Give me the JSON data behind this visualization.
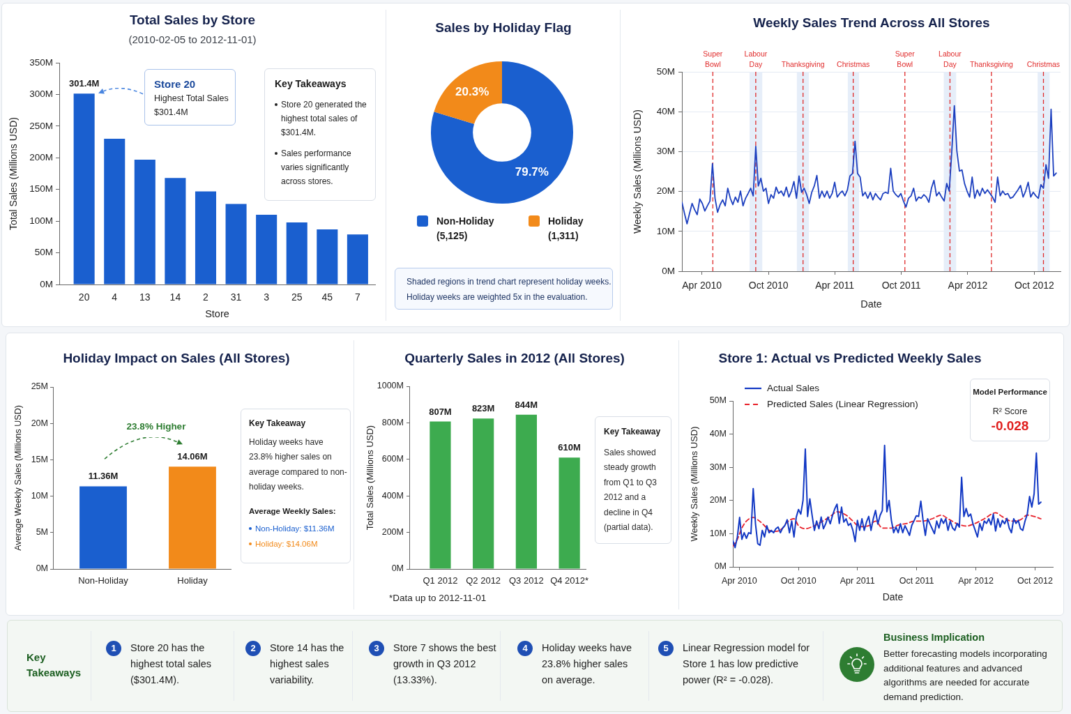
{
  "chart_data": [
    {
      "type": "bar",
      "title": "Total Sales by Store",
      "subtitle": "(2010-02-05 to 2012-11-01)",
      "xlabel": "Store",
      "ylabel": "Total Sales (Millions USD)",
      "categories": [
        "20",
        "4",
        "13",
        "14",
        "2",
        "31",
        "3",
        "25",
        "45",
        "7"
      ],
      "values": [
        301.4,
        230,
        197,
        168,
        147,
        127,
        110,
        98,
        87,
        79
      ],
      "color": "#1a5fcf",
      "value_labels": [
        "301.4M",
        null,
        null,
        null,
        null,
        null,
        null,
        null,
        null,
        null
      ],
      "ylim": [
        0,
        350
      ],
      "yticks": [
        {
          "value": 0,
          "label": "0M"
        },
        {
          "value": 50,
          "label": "50M"
        },
        {
          "value": 100,
          "label": "100M"
        },
        {
          "value": 150,
          "label": "150M"
        },
        {
          "value": 200,
          "label": "200M"
        },
        {
          "value": 250,
          "label": "250M"
        },
        {
          "value": 300,
          "label": "300M"
        },
        {
          "value": 350,
          "label": "350M"
        }
      ],
      "annotations": [
        "Store 20\nHighest Total Sales\n$301.4M",
        "Key Takeaways",
        "Store 20 generated the highest total sales of $301.4M.",
        "Sales performance varies significantly across stores."
      ]
    },
    {
      "type": "donut",
      "title": "Sales by Holiday Flag",
      "categories": [
        "Non-Holiday\n(5,125)",
        "Holiday\n(1,311)"
      ],
      "values": [
        79.7,
        20.3
      ],
      "colors": [
        "#1a5fcf",
        "#f28a1a"
      ],
      "value_labels": [
        "79.7%",
        "20.3%"
      ],
      "legend": "bottom",
      "annotations": [
        "Shaded regions in trend chart represent holiday weeks.",
        "Holiday weeks are weighted 5x in the evaluation."
      ]
    },
    {
      "type": "line",
      "title": "Weekly Sales Trend Across All Stores",
      "xlabel": "Date",
      "ylabel": "Weekly Sales (Millions USD)",
      "x": [
        "2010-02-05",
        "2010-02-12",
        "2010-02-19",
        "2010-02-26",
        "2010-03-05",
        "2010-03-12",
        "2010-03-19",
        "2010-03-26",
        "2010-04-02",
        "2010-04-09",
        "2010-04-16",
        "2010-04-23",
        "2010-04-30",
        "2010-05-07",
        "2010-05-14",
        "2010-05-21",
        "2010-05-28",
        "2010-06-04",
        "2010-06-11",
        "2010-06-18",
        "2010-06-25",
        "2010-07-02",
        "2010-07-09",
        "2010-07-16",
        "2010-07-23",
        "2010-07-30",
        "2010-08-06",
        "2010-08-13",
        "2010-08-20",
        "2010-08-27",
        "2010-09-03",
        "2010-09-10",
        "2010-09-17",
        "2010-09-24",
        "2010-10-01",
        "2010-10-08",
        "2010-10-15",
        "2010-10-22",
        "2010-10-29",
        "2010-11-05",
        "2010-11-12",
        "2010-11-19",
        "2010-11-26",
        "2010-12-03",
        "2010-12-10",
        "2010-12-17",
        "2010-12-24",
        "2010-12-31",
        "2011-01-07",
        "2011-01-14",
        "2011-01-21",
        "2011-01-28",
        "2011-02-04",
        "2011-02-11",
        "2011-02-18",
        "2011-02-25",
        "2011-03-04",
        "2011-03-11",
        "2011-03-18",
        "2011-03-25",
        "2011-04-01",
        "2011-04-08",
        "2011-04-15",
        "2011-04-22",
        "2011-04-29",
        "2011-05-06",
        "2011-05-13",
        "2011-05-20",
        "2011-05-27",
        "2011-06-03",
        "2011-06-10",
        "2011-06-17",
        "2011-06-24",
        "2011-07-01",
        "2011-07-08",
        "2011-07-15",
        "2011-07-22",
        "2011-07-29",
        "2011-08-05",
        "2011-08-12",
        "2011-08-19",
        "2011-08-26",
        "2011-09-02",
        "2011-09-09",
        "2011-09-16",
        "2011-09-23",
        "2011-09-30",
        "2011-10-07",
        "2011-10-14",
        "2011-10-21",
        "2011-10-28",
        "2011-11-04",
        "2011-11-11",
        "2011-11-18",
        "2011-11-25",
        "2011-12-02",
        "2011-12-09",
        "2011-12-16",
        "2011-12-23",
        "2011-12-30",
        "2012-01-06",
        "2012-01-13",
        "2012-01-20",
        "2012-01-27",
        "2012-02-03",
        "2012-02-10",
        "2012-02-17",
        "2012-02-24",
        "2012-03-02",
        "2012-03-09",
        "2012-03-16",
        "2012-03-23",
        "2012-03-30",
        "2012-04-06",
        "2012-04-13",
        "2012-04-20",
        "2012-04-27",
        "2012-05-04",
        "2012-05-11",
        "2012-05-18",
        "2012-05-25",
        "2012-06-01",
        "2012-06-08",
        "2012-06-15",
        "2012-06-22",
        "2012-06-29",
        "2012-07-06",
        "2012-07-13",
        "2012-07-20",
        "2012-07-27",
        "2012-08-03",
        "2012-08-10",
        "2012-08-17",
        "2012-08-24",
        "2012-08-31",
        "2012-09-07",
        "2012-09-14",
        "2012-09-21",
        "2012-09-28",
        "2012-10-05",
        "2012-10-12",
        "2012-10-19",
        "2012-10-26",
        "2012-11-02",
        "2012-11-09",
        "2012-11-16",
        "2012-11-23",
        "2012-11-30"
      ],
      "values": [
        17.3,
        14.5,
        11.9,
        14.5,
        17.0,
        15.4,
        14.2,
        18.1,
        17.0,
        15.1,
        16.4,
        17.6,
        27.0,
        18.3,
        14.8,
        16.7,
        17.9,
        16.4,
        20.8,
        18.3,
        16.7,
        18.6,
        17.3,
        20.1,
        16.4,
        18.3,
        19.5,
        20.8,
        18.9,
        31.3,
        21.4,
        23.3,
        20.1,
        20.8,
        17.0,
        19.2,
        18.3,
        21.1,
        19.5,
        20.1,
        18.9,
        21.1,
        18.6,
        20.1,
        22.5,
        18.3,
        23.9,
        19.8,
        20.8,
        19.2,
        17.0,
        19.8,
        21.4,
        24.0,
        18.3,
        20.1,
        18.6,
        20.1,
        18.3,
        19.5,
        22.3,
        18.6,
        19.5,
        20.1,
        18.9,
        20.4,
        23.9,
        24.5,
        32.6,
        24.5,
        23.6,
        18.9,
        19.8,
        18.3,
        19.8,
        17.9,
        19.5,
        18.6,
        17.9,
        19.5,
        19.8,
        19.5,
        25.8,
        20.1,
        19.2,
        18.6,
        19.5,
        17.6,
        16.1,
        18.3,
        18.9,
        20.8,
        17.6,
        18.6,
        18.3,
        19.2,
        18.6,
        17.3,
        20.8,
        22.8,
        18.9,
        19.8,
        18.6,
        17.6,
        22.0,
        20.1,
        30.1,
        41.5,
        30.1,
        25.1,
        25.4,
        22.0,
        20.1,
        18.6,
        23.6,
        18.3,
        20.4,
        18.9,
        20.8,
        19.5,
        20.4,
        19.5,
        18.6,
        17.3,
        23.6,
        18.9,
        20.1,
        19.2,
        19.5,
        18.3,
        18.6,
        19.5,
        20.4,
        21.5,
        18.6,
        20.1,
        22.3,
        18.6,
        19.8,
        18.9,
        18.3,
        21.7,
        20.8,
        26.7,
        23.3,
        40.6,
        23.9,
        24.6
      ],
      "color": "#1c3fbf",
      "xlim": [
        "2010-02-05",
        "2012-12-12"
      ],
      "xticks": [
        {
          "value": "2010-04-01",
          "label": "Apr 2010"
        },
        {
          "value": "2010-10-01",
          "label": "Oct 2010"
        },
        {
          "value": "2011-04-01",
          "label": "Apr 2011"
        },
        {
          "value": "2011-10-01",
          "label": "Oct 2011"
        },
        {
          "value": "2012-04-01",
          "label": "Apr 2012"
        },
        {
          "value": "2012-10-01",
          "label": "Oct 2012"
        }
      ],
      "ylim": [
        0,
        50
      ],
      "yticks": [
        {
          "value": 0,
          "label": "0M"
        },
        {
          "value": 10,
          "label": "10M"
        },
        {
          "value": 20,
          "label": "20M"
        },
        {
          "value": 30,
          "label": "30M"
        },
        {
          "value": 40,
          "label": "40M"
        },
        {
          "value": 50,
          "label": "50M"
        }
      ],
      "grid": "y",
      "ref_lines": [
        {
          "axis": "x",
          "value": "2010-05-01",
          "label": "Super Bowl",
          "color": "#e02b2b",
          "line_style": "dashed"
        },
        {
          "axis": "x",
          "value": "2010-08-27",
          "label": "Labour Day",
          "color": "#e02b2b",
          "line_style": "dashed"
        },
        {
          "axis": "x",
          "value": "2011-01-04",
          "label": "Thanksgiving",
          "color": "#e02b2b",
          "line_style": "dashed"
        },
        {
          "axis": "x",
          "value": "2011-05-22",
          "label": "Christmas",
          "color": "#e02b2b",
          "line_style": "dashed"
        },
        {
          "axis": "x",
          "value": "2011-10-11",
          "label": "Super Bowl",
          "color": "#e02b2b",
          "line_style": "dashed"
        },
        {
          "axis": "x",
          "value": "2012-02-12",
          "label": "Labour Day",
          "color": "#e02b2b",
          "line_style": "dashed"
        },
        {
          "axis": "x",
          "value": "2012-06-05",
          "label": "Thanksgiving",
          "color": "#e02b2b",
          "line_style": "dashed"
        },
        {
          "axis": "x",
          "value": "2012-10-26",
          "label": "Christmas",
          "color": "#e02b2b",
          "line_style": "dashed"
        }
      ],
      "bands": [
        {
          "axis": "x",
          "from": "2010-08-10",
          "to": "2010-09-14",
          "color": "#e6eef9"
        },
        {
          "axis": "x",
          "from": "2010-12-18",
          "to": "2011-01-20",
          "color": "#e6eef9"
        },
        {
          "axis": "x",
          "from": "2011-05-07",
          "to": "2011-06-07",
          "color": "#e6eef9"
        },
        {
          "axis": "x",
          "from": "2012-01-26",
          "to": "2012-02-29",
          "color": "#e6eef9"
        },
        {
          "axis": "x",
          "from": "2012-10-10",
          "to": "2012-11-12",
          "color": "#e6eef9"
        }
      ]
    },
    {
      "type": "bar",
      "title": "Holiday Impact on Sales (All Stores)",
      "ylabel": "Average Weekly Sales (Millions USD)",
      "categories": [
        "Non-Holiday",
        "Holiday"
      ],
      "values": [
        11.36,
        14.06
      ],
      "colors": [
        "#1a5fcf",
        "#f28a1a"
      ],
      "value_labels": [
        "11.36M",
        "14.06M"
      ],
      "ylim": [
        0,
        25
      ],
      "yticks": [
        {
          "value": 0,
          "label": "0M"
        },
        {
          "value": 5,
          "label": "5M"
        },
        {
          "value": 10,
          "label": "10M"
        },
        {
          "value": 15,
          "label": "15M"
        },
        {
          "value": 20,
          "label": "20M"
        },
        {
          "value": 25,
          "label": "25M"
        }
      ],
      "annotations": [
        "23.8% Higher",
        "Key Takeaway",
        "Holiday weeks have 23.8% higher sales on average compared to non-holiday weeks.",
        "Average Weekly Sales:",
        "Non-Holiday: $11.36M",
        "Holiday: $14.06M"
      ]
    },
    {
      "type": "bar",
      "title": "Quarterly Sales in 2012 (All Stores)",
      "ylabel": "Total Sales (Millions USD)",
      "categories": [
        "Q1 2012",
        "Q2 2012",
        "Q3 2012",
        "Q4 2012*"
      ],
      "values": [
        807,
        823,
        844,
        610
      ],
      "color": "#3dab4f",
      "value_labels": [
        "807M",
        "823M",
        "844M",
        "610M"
      ],
      "ylim": [
        0,
        1000
      ],
      "yticks": [
        {
          "value": 0,
          "label": "0M"
        },
        {
          "value": 200,
          "label": "200M"
        },
        {
          "value": 400,
          "label": "400M"
        },
        {
          "value": 600,
          "label": "600M"
        },
        {
          "value": 800,
          "label": "800M"
        },
        {
          "value": 1000,
          "label": "1000M"
        }
      ],
      "annotations": [
        "*Data up to 2012-11-01",
        "Key Takeaway",
        "Sales showed steady growth from Q1 to Q3 2012 and a decline in Q4 (partial data)."
      ]
    },
    {
      "type": "line",
      "title": "Store 1: Actual vs Predicted Weekly Sales",
      "xlabel": "Date",
      "ylabel": "Weekly Sales (Millions USD)",
      "legend": "top left",
      "series": [
        {
          "name": "Actual Sales",
          "color": "#1238c4",
          "x": [
            "2010-03-12",
            "2010-03-19",
            "2010-03-26",
            "2010-04-02",
            "2010-04-09",
            "2010-04-16",
            "2010-04-23",
            "2010-04-30",
            "2010-05-07",
            "2010-05-14",
            "2010-05-21",
            "2010-05-28",
            "2010-06-04",
            "2010-06-11",
            "2010-06-18",
            "2010-06-25",
            "2010-07-02",
            "2010-07-09",
            "2010-07-16",
            "2010-07-23",
            "2010-07-30",
            "2010-08-06",
            "2010-08-13",
            "2010-08-20",
            "2010-08-27",
            "2010-09-03",
            "2010-09-10",
            "2010-09-17",
            "2010-09-24",
            "2010-10-01",
            "2010-10-08",
            "2010-10-15",
            "2010-10-22",
            "2010-10-29",
            "2010-11-05",
            "2010-11-12",
            "2010-11-19",
            "2010-11-26",
            "2010-12-03",
            "2010-12-10",
            "2010-12-17",
            "2010-12-24",
            "2010-12-31",
            "2011-01-07",
            "2011-01-14",
            "2011-01-21",
            "2011-01-28",
            "2011-02-04",
            "2011-02-11",
            "2011-02-18",
            "2011-02-25",
            "2011-03-04",
            "2011-03-11",
            "2011-03-18",
            "2011-03-25",
            "2011-04-01",
            "2011-04-08",
            "2011-04-15",
            "2011-04-22",
            "2011-04-29",
            "2011-05-06",
            "2011-05-13",
            "2011-05-20",
            "2011-05-27",
            "2011-06-03",
            "2011-06-10",
            "2011-06-17",
            "2011-06-24",
            "2011-07-01",
            "2011-07-08",
            "2011-07-15",
            "2011-07-22",
            "2011-07-29",
            "2011-08-05",
            "2011-08-12",
            "2011-08-19",
            "2011-08-26",
            "2011-09-02",
            "2011-09-09",
            "2011-09-16",
            "2011-09-23",
            "2011-09-30",
            "2011-10-07",
            "2011-10-14",
            "2011-10-21",
            "2011-10-28",
            "2011-11-04",
            "2011-11-11",
            "2011-11-18",
            "2011-11-25",
            "2011-12-02",
            "2011-12-09",
            "2011-12-16",
            "2011-12-23",
            "2011-12-30",
            "2012-01-06",
            "2012-01-13",
            "2012-01-20",
            "2012-01-27",
            "2012-02-03",
            "2012-02-10",
            "2012-02-17",
            "2012-02-24",
            "2012-03-02",
            "2012-03-09",
            "2012-03-16",
            "2012-03-23",
            "2012-03-30",
            "2012-04-06",
            "2012-04-13",
            "2012-04-20",
            "2012-04-27",
            "2012-05-04",
            "2012-05-11",
            "2012-05-18",
            "2012-05-25",
            "2012-06-01",
            "2012-06-08",
            "2012-06-15",
            "2012-06-22",
            "2012-06-29",
            "2012-07-06",
            "2012-07-13",
            "2012-07-20",
            "2012-07-27",
            "2012-08-03",
            "2012-08-10",
            "2012-08-17",
            "2012-08-24",
            "2012-08-31",
            "2012-09-07",
            "2012-09-14",
            "2012-09-21",
            "2012-09-28",
            "2012-10-05",
            "2012-10-12",
            "2012-10-19"
          ],
          "values": [
            7.9,
            5.8,
            9.0,
            14.9,
            8.3,
            10.3,
            8.6,
            10.3,
            10.0,
            23.6,
            13.0,
            7.0,
            6.5,
            11.0,
            9.0,
            12.4,
            10.3,
            11.0,
            10.3,
            11.5,
            12.0,
            10.3,
            11.7,
            12.5,
            14.2,
            10.3,
            13.8,
            9.0,
            15.0,
            17.3,
            15.9,
            20.1,
            35.5,
            15.2,
            20.5,
            15.5,
            11.0,
            13.8,
            11.5,
            15.0,
            11.5,
            13.0,
            15.0,
            13.0,
            15.5,
            17.5,
            18.9,
            13.1,
            18.0,
            13.5,
            14.5,
            12.5,
            13.1,
            11.0,
            7.6,
            14.0,
            11.0,
            14.5,
            11.0,
            13.5,
            15.2,
            11.0,
            14.5,
            17.0,
            12.9,
            15.5,
            17.0,
            36.6,
            16.6,
            20.0,
            14.0,
            10.3,
            12.0,
            10.3,
            13.0,
            10.3,
            12.4,
            11.0,
            9.5,
            12.5,
            13.9,
            15.4,
            15.2,
            19.8,
            13.9,
            9.5,
            14.5,
            13.0,
            11.5,
            10.0,
            13.8,
            11.7,
            14.5,
            13.1,
            14.5,
            11.0,
            13.8,
            11.7,
            11.0,
            13.1,
            12.0,
            27.0,
            15.2,
            17.6,
            15.2,
            15.9,
            13.0,
            11.0,
            9.0,
            13.1,
            11.0,
            13.8,
            13.1,
            14.5,
            12.7,
            15.9,
            10.8,
            14.5,
            12.0,
            14.0,
            13.0,
            14.6,
            11.7,
            10.3,
            14.5,
            13.1,
            14.0,
            11.5,
            11.0,
            13.8,
            15.9,
            21.2,
            18.0,
            22.0,
            34.3,
            18.9,
            19.5
          ]
        },
        {
          "name": "Predicted Sales (Linear Regression)",
          "color": "#e8202a",
          "line_style": "dashed",
          "x": [
            "2010-03-12",
            "2010-03-26",
            "2010-04-09",
            "2010-04-23",
            "2010-05-14",
            "2010-05-28",
            "2010-06-18",
            "2010-07-02",
            "2010-07-23",
            "2010-08-13",
            "2010-08-27",
            "2010-09-17",
            "2010-10-01",
            "2010-10-22",
            "2010-11-12",
            "2010-12-10",
            "2011-01-07",
            "2011-01-28",
            "2011-02-25",
            "2011-03-18",
            "2011-04-08",
            "2011-05-06",
            "2011-05-27",
            "2011-06-17",
            "2011-07-15",
            "2011-08-05",
            "2011-09-02",
            "2011-09-23",
            "2011-10-21",
            "2011-11-18",
            "2011-12-16",
            "2012-01-06",
            "2012-02-03",
            "2012-03-02",
            "2012-03-30",
            "2012-04-27",
            "2012-06-01",
            "2012-06-22",
            "2012-07-20",
            "2012-08-17",
            "2012-09-07",
            "2012-09-28",
            "2012-10-19"
          ],
          "values": [
            6.2,
            8.3,
            11.7,
            13.8,
            14.9,
            14.2,
            12.4,
            11.0,
            10.7,
            11.7,
            13.5,
            14.5,
            12.4,
            11.5,
            12.1,
            13.5,
            15.2,
            16.6,
            15.6,
            13.8,
            12.1,
            12.4,
            13.8,
            11.7,
            11.7,
            12.6,
            13.1,
            13.8,
            13.8,
            14.5,
            15.6,
            14.5,
            13.0,
            12.3,
            13.1,
            14.5,
            16.3,
            15.1,
            13.8,
            14.2,
            15.6,
            15.2,
            14.5
          ]
        }
      ],
      "xlim": [
        "2010-03-12",
        "2012-11-25"
      ],
      "xticks": [
        {
          "value": "2010-04-01",
          "label": "Apr 2010"
        },
        {
          "value": "2010-10-01",
          "label": "Oct 2010"
        },
        {
          "value": "2011-04-01",
          "label": "Apr 2011"
        },
        {
          "value": "2011-10-01",
          "label": "Oct 2011"
        },
        {
          "value": "2012-04-01",
          "label": "Apr 2012"
        },
        {
          "value": "2012-10-01",
          "label": "Oct 2012"
        }
      ],
      "ylim": [
        0,
        50
      ],
      "yticks": [
        {
          "value": 0,
          "label": "0M"
        },
        {
          "value": 10,
          "label": "10M"
        },
        {
          "value": 20,
          "label": "20M"
        },
        {
          "value": 30,
          "label": "30M"
        },
        {
          "value": 40,
          "label": "40M"
        },
        {
          "value": 50,
          "label": "50M"
        }
      ],
      "annotations": [
        "Model Performance",
        "R² Score",
        "-0.028"
      ]
    },
    {
      "type": "other",
      "title": "Key Takeaways",
      "annotations": [
        "1 Store 20 has the highest total sales ($301.4M).",
        "2 Store 14 has the highest sales variability.",
        "3 Store 7 shows the best growth in Q3 2012 (13.33%).",
        "4 Holiday weeks have 23.8% higher sales on average.",
        "5 Linear Regression model for Store 1 has low predictive power (R² = -0.028).",
        "Business Implication",
        "Better forecasting models incorporating additional features and advanced algorithms are needed for accurate demand prediction."
      ]
    }
  ]
}
